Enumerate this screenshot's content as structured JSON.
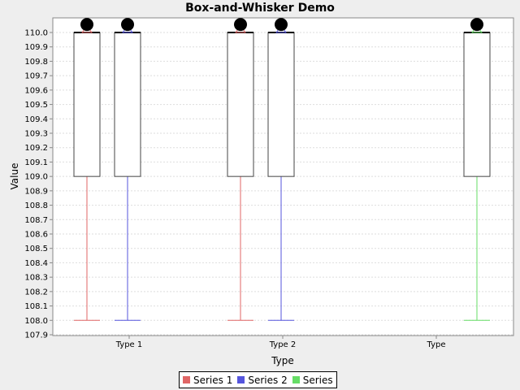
{
  "chart_data": {
    "type": "box",
    "title": "Box-and-Whisker Demo",
    "xlabel": "Type",
    "ylabel": "Value",
    "ylim": [
      107.9,
      110.05
    ],
    "categories": [
      "Type 1",
      "Type 2",
      "Type"
    ],
    "grid": true,
    "legend_position": "bottom",
    "series": [
      {
        "name": "Series 1",
        "color": "#e06666",
        "boxes": [
          {
            "category": "Type 1",
            "min": 108.0,
            "q1": 109.0,
            "median": 110.0,
            "q3": 110.0,
            "max": 110.0,
            "mean": 110.0,
            "outliers": [
              110.05
            ]
          },
          {
            "category": "Type 2",
            "min": 108.0,
            "q1": 109.0,
            "median": 110.0,
            "q3": 110.0,
            "max": 110.0,
            "mean": 110.0,
            "outliers": [
              110.05
            ]
          }
        ]
      },
      {
        "name": "Series 2",
        "color": "#5555dd",
        "boxes": [
          {
            "category": "Type 1",
            "min": 108.0,
            "q1": 109.0,
            "median": 110.0,
            "q3": 110.0,
            "max": 110.0,
            "mean": 110.0,
            "outliers": [
              110.05
            ]
          },
          {
            "category": "Type 2",
            "min": 108.0,
            "q1": 109.0,
            "median": 110.0,
            "q3": 110.0,
            "max": 110.0,
            "mean": 110.0,
            "outliers": [
              110.05
            ]
          }
        ]
      },
      {
        "name": "Series",
        "color": "#66dd66",
        "boxes": [
          {
            "category": "Type",
            "min": 108.0,
            "q1": 109.0,
            "median": 110.0,
            "q3": 110.0,
            "max": 110.0,
            "mean": 110.0,
            "outliers": [
              110.05
            ]
          }
        ]
      }
    ]
  }
}
